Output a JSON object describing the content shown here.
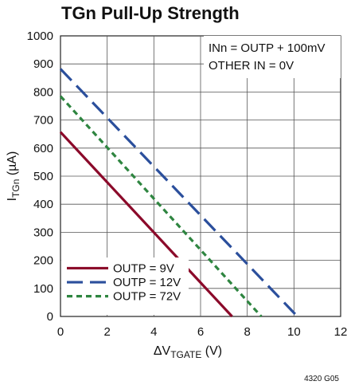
{
  "chart_data": {
    "type": "line",
    "title": "TGn Pull-Up Strength",
    "xlabel": "ΔV",
    "xlabel_sub": "TGATE",
    "xlabel_unit": " (V)",
    "ylabel": "I",
    "ylabel_sub": "TGn",
    "ylabel_unit": " (µA)",
    "xlim": [
      0,
      12
    ],
    "ylim": [
      0,
      1000
    ],
    "xticks": [
      0,
      2,
      4,
      6,
      8,
      10,
      12
    ],
    "yticks": [
      0,
      100,
      200,
      300,
      400,
      500,
      600,
      700,
      800,
      900,
      1000
    ],
    "grid": true,
    "legend_position": "bottom-left",
    "annotations": [
      "INn = OUTP + 100mV",
      "OTHER IN = 0V"
    ],
    "series": [
      {
        "name": "OUTP = 9V",
        "color": "#8b0a2a",
        "dash": "solid",
        "x": [
          0,
          7.35
        ],
        "y": [
          657,
          0
        ]
      },
      {
        "name": "OUTP = 12V",
        "color": "#2b4f9c",
        "dash": "long-dash",
        "x": [
          0,
          10.15
        ],
        "y": [
          882,
          0
        ]
      },
      {
        "name": "OUTP = 72V",
        "color": "#2e8540",
        "dash": "short-dash",
        "x": [
          0,
          8.6
        ],
        "y": [
          785,
          0
        ]
      }
    ]
  },
  "figure_id": "4320 G05"
}
